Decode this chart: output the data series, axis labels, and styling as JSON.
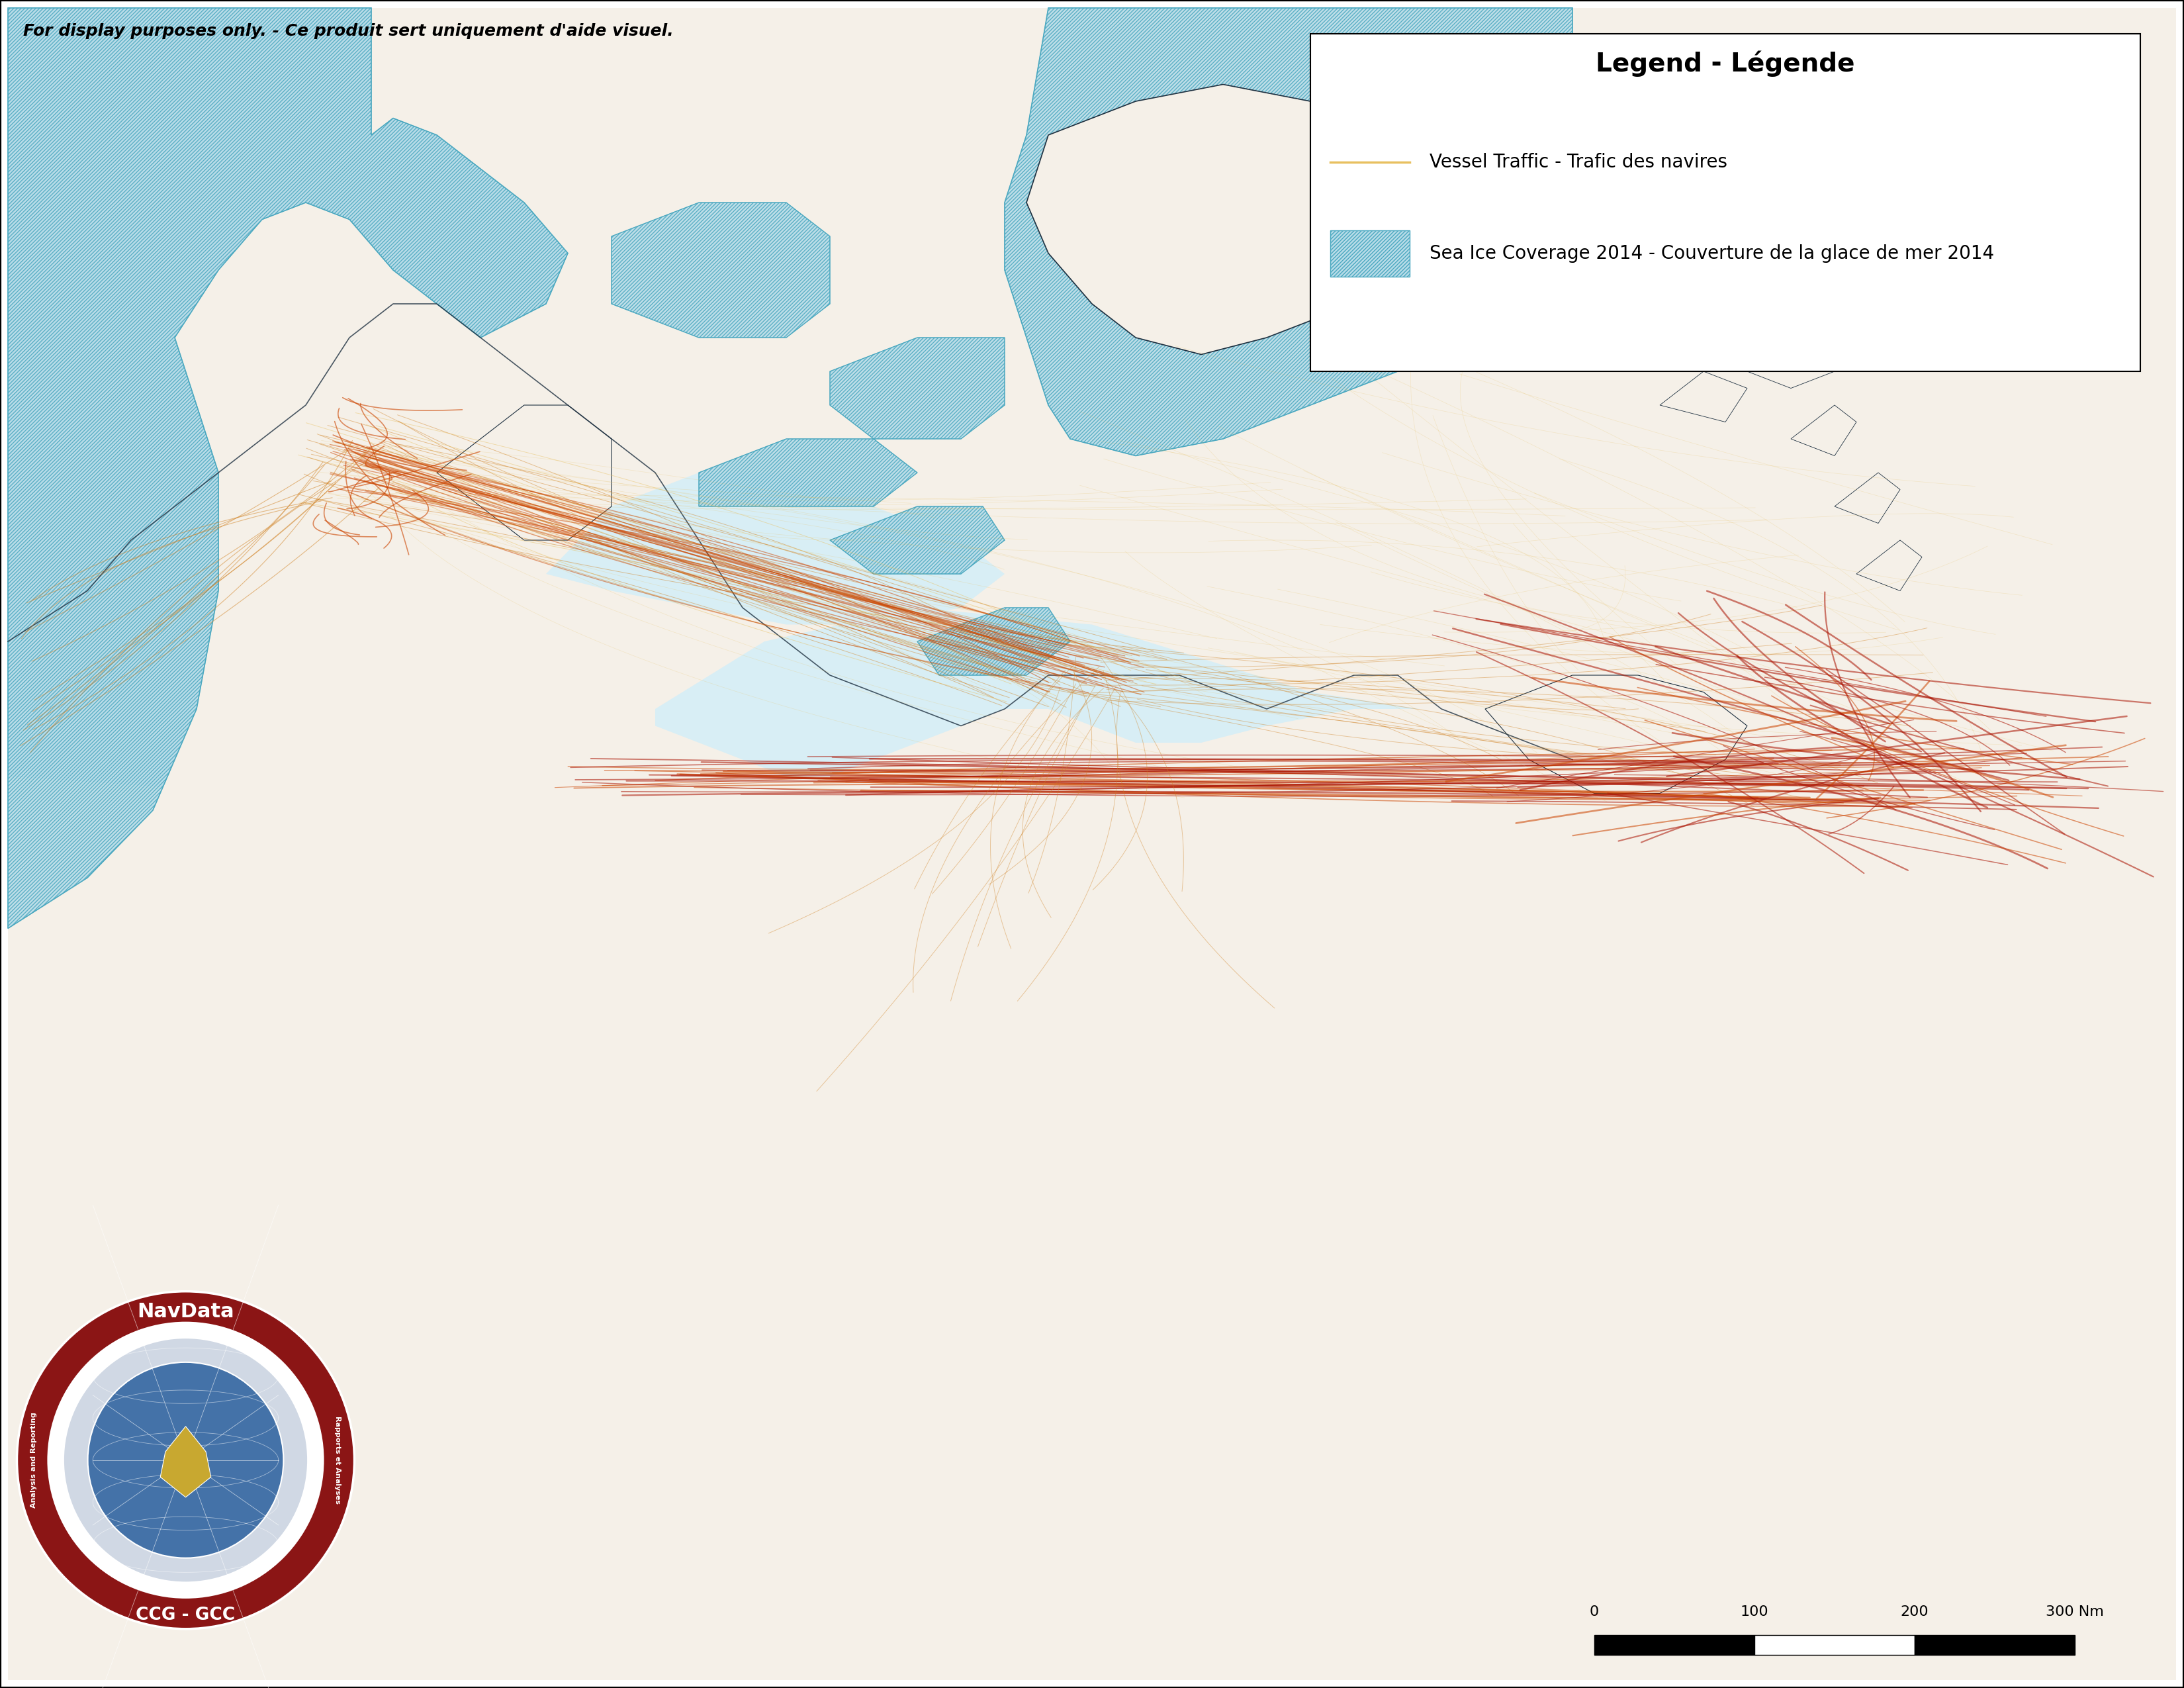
{
  "title": "Legend - Légende",
  "disclaimer": "For display purposes only. - Ce produit sert uniquement d'aide visuel.",
  "legend_vessel": "Vessel Traffic - Trafic des navires",
  "legend_ice": "Sea Ice Coverage 2014 - Couverture de la glace de mer 2014",
  "background_land": "#f5f0e8",
  "background_water_deep": "#c5e3ef",
  "background_water_light": "#d8eef5",
  "land_light": "#f0ece0",
  "land_medium": "#e8e2d4",
  "ice_bg_color": "#b8dce8",
  "ice_hatch_color": "#4aa8c0",
  "border_color": "#1e3040",
  "vessel_color_sparse": "#e8c060",
  "vessel_color_medium": "#d08020",
  "vessel_color_dense": "#cc4400",
  "vessel_color_high": "#aa1100",
  "navdata_outer": "#8b1515",
  "navdata_mid": "#c0c0c0",
  "navdata_globe": "#4472a8",
  "scale_0": "0",
  "scale_100": "100",
  "scale_200": "200",
  "scale_300": "300 Nm"
}
